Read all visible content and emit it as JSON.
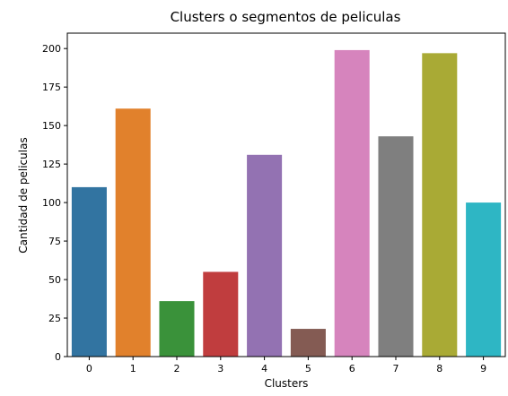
{
  "chart_data": {
    "type": "bar",
    "title": "Clusters o segmentos de peliculas",
    "xlabel": "Clusters",
    "ylabel": "Cantidad de peliculas",
    "categories": [
      "0",
      "1",
      "2",
      "3",
      "4",
      "5",
      "6",
      "7",
      "8",
      "9"
    ],
    "values": [
      110,
      161,
      36,
      55,
      131,
      18,
      199,
      143,
      197,
      100
    ],
    "colors": [
      "#3274a1",
      "#e1812c",
      "#3a923a",
      "#c03d3e",
      "#9372b2",
      "#845b53",
      "#d684bd",
      "#7f7f7f",
      "#a9aa35",
      "#2eb6c4"
    ],
    "ylim": [
      0,
      210
    ],
    "yticks": [
      0,
      25,
      50,
      75,
      100,
      125,
      150,
      175,
      200
    ],
    "grid": false,
    "legend": "none"
  }
}
